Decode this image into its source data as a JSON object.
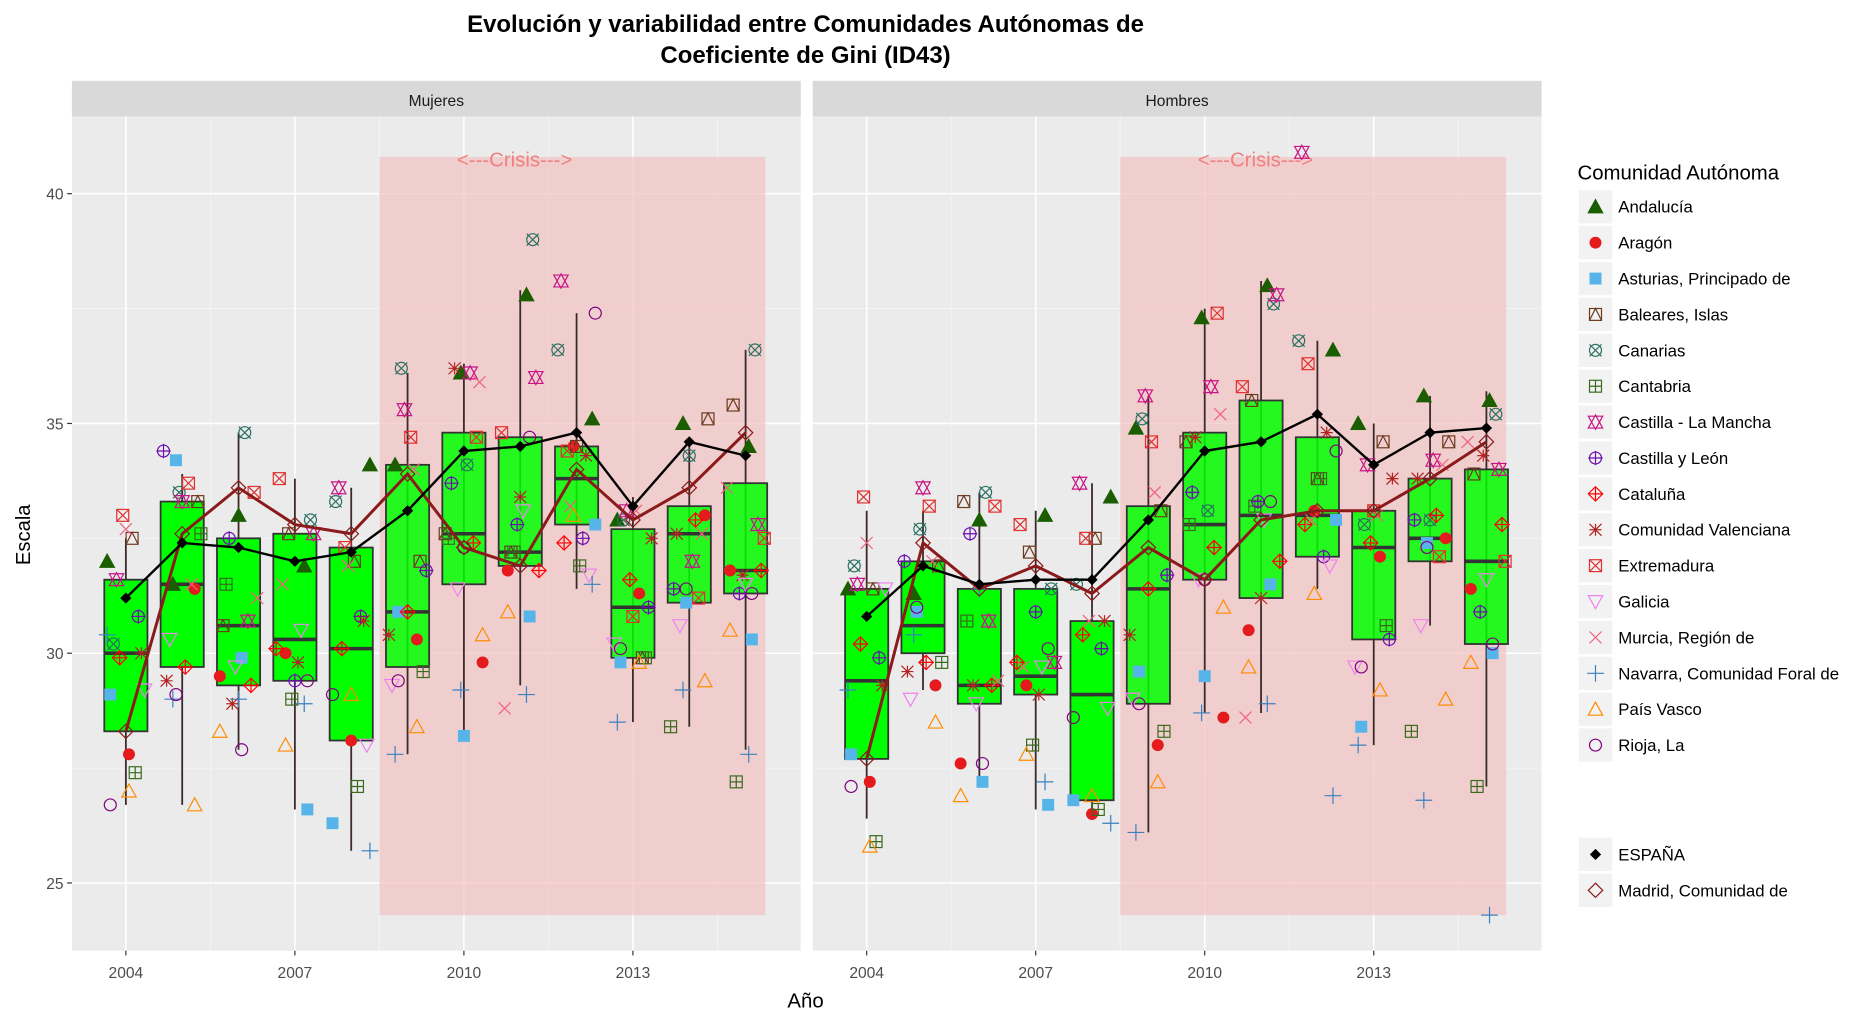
{
  "chart_data": {
    "type": "box",
    "title_line1": "Evolución y variabilidad entre Comunidades Autónomas de",
    "title_line2": "Coeficiente de Gini (ID43)",
    "xlabel": "Año",
    "ylabel": "Escala",
    "ylim": [
      23.7,
      41.7
    ],
    "yticks": [
      25,
      30,
      35,
      40
    ],
    "xticks": [
      2004,
      2007,
      2010,
      2013
    ],
    "years": [
      2004,
      2005,
      2006,
      2007,
      2008,
      2009,
      2010,
      2011,
      2012,
      2013,
      2014,
      2015
    ],
    "crisis_label": "<---Crisis--->",
    "crisis_range": [
      2008.5,
      2015.35
    ],
    "crisis_y_range": [
      24.3,
      40.8
    ],
    "box_fill": "#00ff00",
    "crisis_color": "#f4c2c2",
    "legend_title": "Comunidad Autónoma",
    "legend_position": "right",
    "communities": [
      {
        "name": "Andalucía",
        "shape": "triangle-filled",
        "color": "#1a5e00"
      },
      {
        "name": "Aragón",
        "shape": "circle-filled",
        "color": "#e41a1c"
      },
      {
        "name": "Asturias, Principado de",
        "shape": "square-filled",
        "color": "#56b4e9"
      },
      {
        "name": "Baleares, Islas",
        "shape": "square-triangle",
        "color": "#6b3a1f"
      },
      {
        "name": "Canarias",
        "shape": "circle-x",
        "color": "#2a7060"
      },
      {
        "name": "Cantabria",
        "shape": "square-plus",
        "color": "#3a6a1f"
      },
      {
        "name": "Castilla - La Mancha",
        "shape": "star-of-david",
        "color": "#c71585"
      },
      {
        "name": "Castilla y León",
        "shape": "circle-plus",
        "color": "#6a0dad"
      },
      {
        "name": "Cataluña",
        "shape": "diamond-plus",
        "color": "#ff0000"
      },
      {
        "name": "Comunidad Valenciana",
        "shape": "asterisk",
        "color": "#b22222"
      },
      {
        "name": "Extremadura",
        "shape": "square-x",
        "color": "#e03030"
      },
      {
        "name": "Galicia",
        "shape": "triangle-down",
        "color": "#ee82ee"
      },
      {
        "name": "Murcia, Región de",
        "shape": "x",
        "color": "#f06080"
      },
      {
        "name": "Navarra, Comunidad Foral de",
        "shape": "plus",
        "color": "#3a80c0"
      },
      {
        "name": "País Vasco",
        "shape": "triangle-open",
        "color": "#ff8c00"
      },
      {
        "name": "Rioja, La",
        "shape": "circle-open",
        "color": "#800080"
      }
    ],
    "reference_series": [
      {
        "name": "ESPAÑA",
        "shape": "diamond-filled",
        "color": "#000000"
      },
      {
        "name": "Madrid, Comunidad de",
        "shape": "diamond-open",
        "color": "#8b1a1a"
      }
    ],
    "panels": [
      {
        "name": "Mujeres",
        "boxes": [
          {
            "min": 26.7,
            "q1": 28.3,
            "median": 30.0,
            "q3": 31.6,
            "max": 32.5
          },
          {
            "min": 26.7,
            "q1": 29.7,
            "median": 31.5,
            "q3": 33.3,
            "max": 33.9
          },
          {
            "min": 27.9,
            "q1": 29.3,
            "median": 30.6,
            "q3": 32.5,
            "max": 34.8
          },
          {
            "min": 26.6,
            "q1": 29.4,
            "median": 30.3,
            "q3": 32.6,
            "max": 33.8
          },
          {
            "min": 25.7,
            "q1": 28.1,
            "median": 30.1,
            "q3": 32.3,
            "max": 33.6
          },
          {
            "min": 27.8,
            "q1": 29.7,
            "median": 30.9,
            "q3": 34.1,
            "max": 36.1
          },
          {
            "min": 28.3,
            "q1": 31.5,
            "median": 32.6,
            "q3": 34.8,
            "max": 36.3
          },
          {
            "min": 29.3,
            "q1": 31.9,
            "median": 32.2,
            "q3": 34.7,
            "max": 37.9
          },
          {
            "min": 31.4,
            "q1": 32.8,
            "median": 33.8,
            "q3": 34.5,
            "max": 37.4
          },
          {
            "min": 28.5,
            "q1": 29.9,
            "median": 31.0,
            "q3": 32.7,
            "max": 33.4
          },
          {
            "min": 28.4,
            "q1": 31.1,
            "median": 32.6,
            "q3": 33.2,
            "max": 34.5
          },
          {
            "min": 27.9,
            "q1": 31.3,
            "median": 31.8,
            "q3": 33.7,
            "max": 36.6
          }
        ],
        "espana": [
          31.2,
          32.4,
          32.3,
          32.0,
          32.2,
          33.1,
          34.4,
          34.5,
          34.8,
          33.2,
          34.6,
          34.3
        ],
        "madrid": [
          28.3,
          32.6,
          33.6,
          32.8,
          32.6,
          33.9,
          32.3,
          31.9,
          34.0,
          32.9,
          33.6,
          34.8
        ],
        "values": [
          [
            32.0,
            31.5,
            33.0,
            31.9,
            34.1,
            34.1,
            36.1,
            37.8,
            35.1,
            32.9,
            35.0,
            34.5
          ],
          [
            27.8,
            31.4,
            29.5,
            30.0,
            28.1,
            30.3,
            29.8,
            31.8,
            34.5,
            31.3,
            33.0,
            31.8
          ],
          [
            29.1,
            34.2,
            29.9,
            26.6,
            26.3,
            30.9,
            28.2,
            30.8,
            32.8,
            29.8,
            31.1,
            30.3
          ],
          [
            32.5,
            33.3,
            30.6,
            32.6,
            32.0,
            32.0,
            32.6,
            32.2,
            34.5,
            29.9,
            35.1,
            35.4
          ],
          [
            30.2,
            33.5,
            34.8,
            32.9,
            33.3,
            36.2,
            34.1,
            39.0,
            36.6,
            32.9,
            34.3,
            36.6
          ],
          [
            27.4,
            32.6,
            31.5,
            29.0,
            27.1,
            29.6,
            32.5,
            32.2,
            31.9,
            29.9,
            28.4,
            27.2
          ],
          [
            31.6,
            33.3,
            30.7,
            32.6,
            33.6,
            35.3,
            36.1,
            36.0,
            38.1,
            33.1,
            32.0,
            32.8
          ],
          [
            30.8,
            34.4,
            32.5,
            29.4,
            30.8,
            31.8,
            33.7,
            32.8,
            32.5,
            31.0,
            31.4,
            31.3
          ],
          [
            29.9,
            29.7,
            29.3,
            30.1,
            30.1,
            30.9,
            32.4,
            31.8,
            32.4,
            31.6,
            32.9,
            31.8
          ],
          [
            30.0,
            29.4,
            28.9,
            29.8,
            30.7,
            30.4,
            36.2,
            33.4,
            34.3,
            32.5,
            32.6,
            31.7
          ],
          [
            33.0,
            33.7,
            33.5,
            33.8,
            32.3,
            34.7,
            34.7,
            34.8,
            34.4,
            30.8,
            31.2,
            32.5
          ],
          [
            29.2,
            30.3,
            29.7,
            30.5,
            28.0,
            29.3,
            31.4,
            33.1,
            31.7,
            30.2,
            30.6,
            31.5
          ],
          [
            32.7,
            31.5,
            31.2,
            31.5,
            31.9,
            34.0,
            35.9,
            28.8,
            33.2,
            33.1,
            32.6,
            33.6
          ],
          [
            30.4,
            29.0,
            29.0,
            28.9,
            25.7,
            27.8,
            29.2,
            29.1,
            31.5,
            28.5,
            29.2,
            27.8
          ],
          [
            27.0,
            26.7,
            28.3,
            28.0,
            29.1,
            28.4,
            30.4,
            30.9,
            33.0,
            29.8,
            29.4,
            30.5
          ],
          [
            26.7,
            29.1,
            27.9,
            29.4,
            29.1,
            29.4,
            32.3,
            34.7,
            37.4,
            30.1,
            31.4,
            31.3
          ]
        ]
      },
      {
        "name": "Hombres",
        "boxes": [
          {
            "min": 26.4,
            "q1": 27.7,
            "median": 29.4,
            "q3": 31.4,
            "max": 33.1
          },
          {
            "min": 29.2,
            "q1": 30.0,
            "median": 30.6,
            "q3": 32.0,
            "max": 33.1
          },
          {
            "min": 27.1,
            "q1": 28.9,
            "median": 29.3,
            "q3": 31.4,
            "max": 33.5
          },
          {
            "min": 26.6,
            "q1": 29.1,
            "median": 29.5,
            "q3": 31.4,
            "max": 33.1
          },
          {
            "min": 26.4,
            "q1": 26.8,
            "median": 29.1,
            "q3": 30.7,
            "max": 33.7
          },
          {
            "min": 26.1,
            "q1": 28.9,
            "median": 31.4,
            "q3": 33.2,
            "max": 35.6
          },
          {
            "min": 28.7,
            "q1": 31.6,
            "median": 32.8,
            "q3": 34.8,
            "max": 37.5
          },
          {
            "min": 28.7,
            "q1": 31.2,
            "median": 33.0,
            "q3": 35.5,
            "max": 38.1
          },
          {
            "min": 31.4,
            "q1": 32.1,
            "median": 33.0,
            "q3": 34.7,
            "max": 36.8
          },
          {
            "min": 28.0,
            "q1": 30.3,
            "median": 32.3,
            "q3": 33.1,
            "max": 35.0
          },
          {
            "min": 30.6,
            "q1": 32.0,
            "median": 32.5,
            "q3": 33.8,
            "max": 35.6
          },
          {
            "min": 27.1,
            "q1": 30.2,
            "median": 32.0,
            "q3": 34.0,
            "max": 35.7
          }
        ],
        "espana": [
          30.8,
          31.9,
          31.5,
          31.6,
          31.6,
          32.9,
          34.4,
          34.6,
          35.2,
          34.1,
          34.8,
          34.9
        ],
        "madrid": [
          27.7,
          32.4,
          31.4,
          31.9,
          31.3,
          32.3,
          31.6,
          32.9,
          33.1,
          33.1,
          33.8,
          34.6
        ],
        "values": [
          [
            31.4,
            31.3,
            32.9,
            33.0,
            33.4,
            34.9,
            37.3,
            38.0,
            36.6,
            35.0,
            35.6,
            35.5
          ],
          [
            27.2,
            29.3,
            27.6,
            29.3,
            26.5,
            28.0,
            28.6,
            30.5,
            33.1,
            32.1,
            32.5,
            31.4
          ],
          [
            27.8,
            30.9,
            27.2,
            26.7,
            26.8,
            29.6,
            29.5,
            31.5,
            32.9,
            28.4,
            32.4,
            30.0
          ],
          [
            31.4,
            31.9,
            33.3,
            32.2,
            32.5,
            33.1,
            34.6,
            35.5,
            33.8,
            34.6,
            34.6,
            33.9
          ],
          [
            31.9,
            32.7,
            33.5,
            31.4,
            31.5,
            35.1,
            33.1,
            37.6,
            36.8,
            32.8,
            32.9,
            35.2
          ],
          [
            25.9,
            29.8,
            30.7,
            28.0,
            26.6,
            28.3,
            32.8,
            33.2,
            33.8,
            30.6,
            28.3,
            27.1
          ],
          [
            31.5,
            33.6,
            30.7,
            29.8,
            33.7,
            35.6,
            35.8,
            37.8,
            40.9,
            34.1,
            34.2,
            34.0
          ],
          [
            29.9,
            32.0,
            32.6,
            30.9,
            30.1,
            31.7,
            33.5,
            33.3,
            32.1,
            30.3,
            32.9,
            30.9
          ],
          [
            30.2,
            29.8,
            29.3,
            29.8,
            30.4,
            31.4,
            32.3,
            32.0,
            32.8,
            32.4,
            33.0,
            32.8
          ],
          [
            29.3,
            29.6,
            29.3,
            29.1,
            30.7,
            30.4,
            34.7,
            31.2,
            34.8,
            33.8,
            33.8,
            34.3
          ],
          [
            33.4,
            33.2,
            33.2,
            32.8,
            32.5,
            34.6,
            37.4,
            35.8,
            36.3,
            33.1,
            32.1,
            32.0
          ],
          [
            31.4,
            29.0,
            28.9,
            29.7,
            28.8,
            29.0,
            31.6,
            32.9,
            31.9,
            29.7,
            30.6,
            31.6
          ],
          [
            32.4,
            32.0,
            29.4,
            29.7,
            30.7,
            33.5,
            35.2,
            28.6,
            32.9,
            33.0,
            34.1,
            34.6
          ],
          [
            29.2,
            30.4,
            31.4,
            27.2,
            26.3,
            26.1,
            28.7,
            28.9,
            26.9,
            28.0,
            26.8,
            24.3
          ],
          [
            25.8,
            28.5,
            26.9,
            27.8,
            26.9,
            27.2,
            31.0,
            29.7,
            31.3,
            29.2,
            29.0,
            29.8
          ],
          [
            27.1,
            31.0,
            27.6,
            30.1,
            28.6,
            28.9,
            31.6,
            33.3,
            34.4,
            29.7,
            32.3,
            30.2
          ]
        ]
      }
    ]
  }
}
